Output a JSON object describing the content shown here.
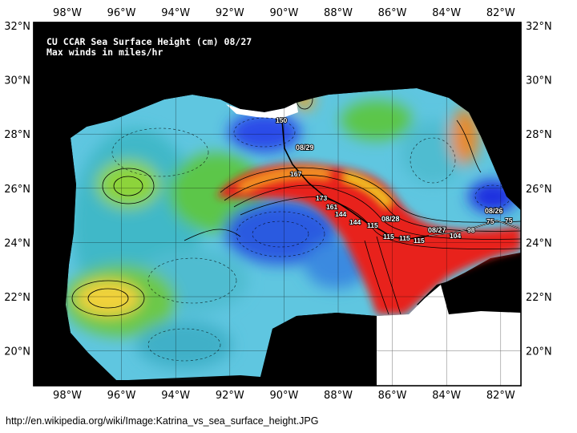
{
  "title_line1": "CU CCAR Sea Surface Height (cm) 08/27",
  "title_line2": "Max winds in miles/hr",
  "lon_labels": [
    "98°W",
    "96°W",
    "94°W",
    "92°W",
    "90°W",
    "88°W",
    "86°W",
    "84°W",
    "82°W"
  ],
  "lat_labels": [
    "32°N",
    "30°N",
    "28°N",
    "26°N",
    "24°N",
    "22°N",
    "20°N"
  ],
  "track": {
    "dates": [
      "08/26",
      "08/27",
      "08/28",
      "08/29"
    ],
    "winds": [
      "75",
      "75",
      "98",
      "104",
      "115",
      "115",
      "115",
      "115",
      "144",
      "144",
      "161",
      "173",
      "167",
      "150"
    ]
  },
  "caption": "http://en.wikipedia.org/wiki/Image:Katrina_vs_sea_surface_height.JPG",
  "colors": {
    "land": "#000000",
    "high": "#e8201e",
    "mid": "#2ec32e",
    "low": "#1e3ce8",
    "frame_bg": "#ffffff"
  }
}
